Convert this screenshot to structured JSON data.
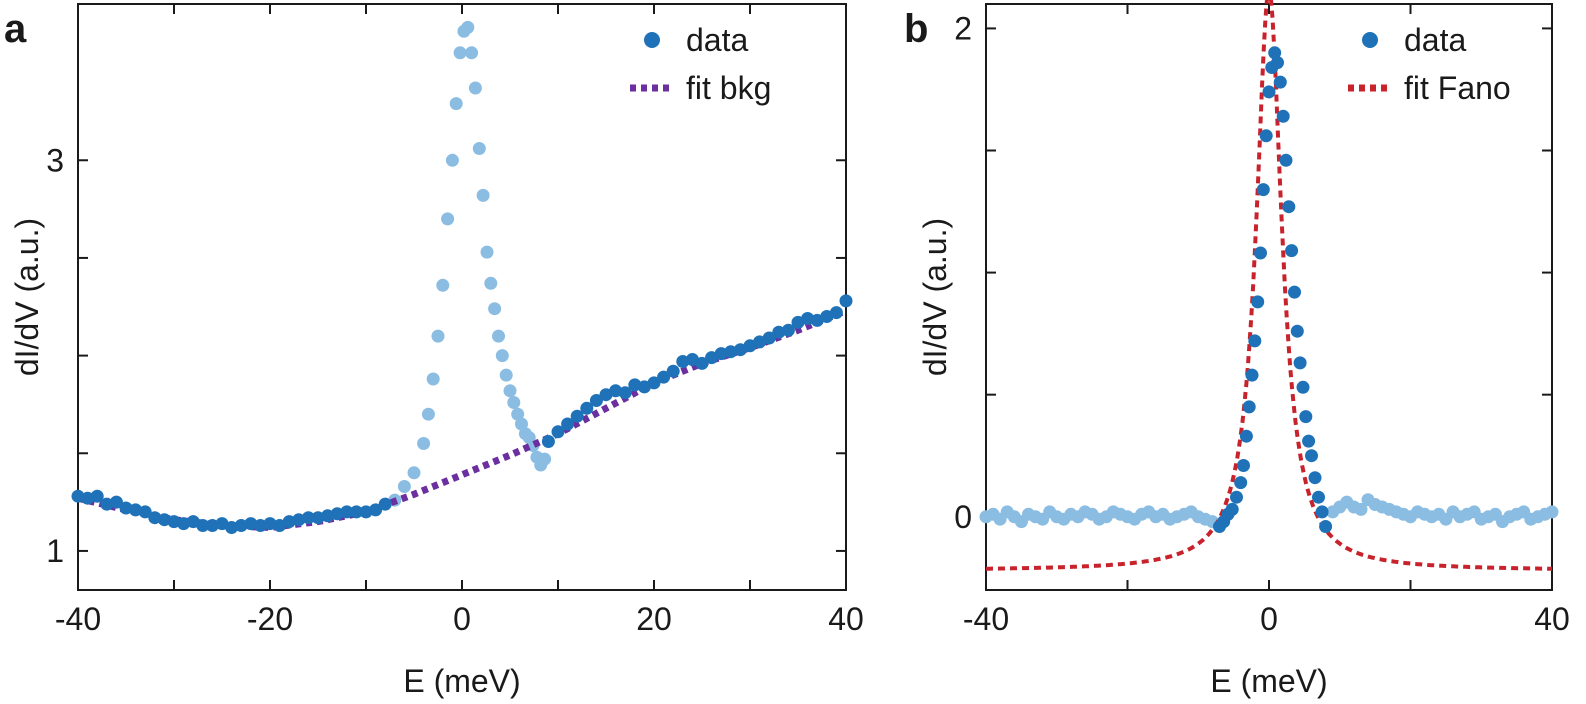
{
  "colors": {
    "data_dark": "#1f72b8",
    "data_light": "#8bbde3",
    "fit_bkg": "#6b2fa0",
    "fit_fano": "#c8232c",
    "axis": "#1a1a1a"
  },
  "chart_data": [
    {
      "panel": "a",
      "type": "scatter",
      "xlabel": "E (meV)",
      "ylabel": "dI/dV (a.u.)",
      "xlim": [
        -40,
        40
      ],
      "ylim": [
        0.8,
        3.8
      ],
      "xticks": [
        -40,
        -20,
        0,
        20,
        40
      ],
      "xtick_labels": [
        "-40",
        "-20",
        "0",
        "20",
        "40"
      ],
      "yticks": [
        1,
        3
      ],
      "ytick_labels": [
        "1",
        "3"
      ],
      "minor_yticks": [
        1.5,
        2,
        2.5
      ],
      "minor_xticks": [
        -30,
        -10,
        10,
        30
      ],
      "grid": false,
      "legend": {
        "position": "top-right",
        "entries": [
          {
            "label": "data",
            "marker": "dot",
            "color_key": "data_dark"
          },
          {
            "label": "fit bkg",
            "marker": "dotted-line",
            "color_key": "fit_bkg"
          }
        ]
      },
      "series": [
        {
          "name": "data (background)",
          "color_key": "data_dark",
          "x": [
            -40,
            -39,
            -38,
            -37,
            -36,
            -35,
            -34,
            -33,
            -32,
            -31,
            -30,
            -29,
            -28,
            -27,
            -26,
            -25,
            -24,
            -23,
            -22,
            -21,
            -20,
            -19,
            -18,
            -17,
            -16,
            -15,
            -14,
            -13,
            -12,
            -11,
            -10,
            -9,
            -8,
            9,
            10,
            11,
            12,
            13,
            14,
            15,
            16,
            17,
            18,
            19,
            20,
            21,
            22,
            23,
            24,
            25,
            26,
            27,
            28,
            29,
            30,
            31,
            32,
            33,
            34,
            35,
            36,
            37,
            38,
            39,
            40
          ],
          "y": [
            1.28,
            1.27,
            1.28,
            1.24,
            1.25,
            1.22,
            1.21,
            1.2,
            1.17,
            1.16,
            1.15,
            1.14,
            1.15,
            1.13,
            1.13,
            1.14,
            1.12,
            1.13,
            1.14,
            1.13,
            1.14,
            1.13,
            1.15,
            1.16,
            1.17,
            1.17,
            1.18,
            1.19,
            1.2,
            1.2,
            1.2,
            1.21,
            1.24,
            1.56,
            1.61,
            1.65,
            1.69,
            1.73,
            1.77,
            1.8,
            1.82,
            1.81,
            1.85,
            1.84,
            1.86,
            1.89,
            1.92,
            1.97,
            1.98,
            1.96,
            1.99,
            2.01,
            2.02,
            2.03,
            2.05,
            2.07,
            2.09,
            2.12,
            2.13,
            2.17,
            2.19,
            2.18,
            2.2,
            2.22,
            2.28
          ]
        },
        {
          "name": "data (peak, excluded)",
          "color_key": "data_light",
          "x": [
            -7,
            -6,
            -5,
            -4,
            -3.5,
            -3,
            -2.5,
            -2,
            -1.5,
            -1,
            -0.6,
            -0.2,
            0.2,
            0.6,
            1,
            1.4,
            1.8,
            2.2,
            2.6,
            3,
            3.4,
            3.8,
            4.2,
            4.6,
            5,
            5.4,
            5.8,
            6.2,
            6.6,
            7,
            7.4,
            7.8,
            8.2,
            8.6
          ],
          "y": [
            1.26,
            1.33,
            1.4,
            1.55,
            1.7,
            1.88,
            2.1,
            2.36,
            2.7,
            3.0,
            3.29,
            3.55,
            3.66,
            3.68,
            3.55,
            3.37,
            3.06,
            2.82,
            2.53,
            2.37,
            2.24,
            2.1,
            2.0,
            1.9,
            1.82,
            1.76,
            1.7,
            1.65,
            1.6,
            1.58,
            1.54,
            1.48,
            1.44,
            1.47
          ]
        },
        {
          "name": "fit bkg",
          "color_key": "fit_bkg",
          "style": "dotted-line",
          "x": [
            -40,
            -35,
            -30,
            -25,
            -20,
            -15,
            -10,
            -5,
            0,
            5,
            10,
            15,
            20,
            25,
            30,
            35,
            40
          ],
          "y": [
            1.27,
            1.21,
            1.16,
            1.13,
            1.12,
            1.15,
            1.2,
            1.29,
            1.39,
            1.49,
            1.6,
            1.73,
            1.86,
            1.96,
            2.04,
            2.13,
            2.23
          ]
        }
      ]
    },
    {
      "panel": "b",
      "type": "scatter",
      "xlabel": "E (meV)",
      "ylabel": "dI/dV (a.u.)",
      "xlim": [
        -40,
        40
      ],
      "ylim": [
        -0.3,
        2.1
      ],
      "xticks": [
        -40,
        0,
        40
      ],
      "xtick_labels": [
        "-40",
        "0",
        "40"
      ],
      "minor_xticks": [
        -20,
        20
      ],
      "yticks": [
        0,
        2
      ],
      "ytick_labels": [
        "0",
        "2"
      ],
      "minor_yticks": [
        0.5,
        1,
        1.5
      ],
      "grid": false,
      "legend": {
        "position": "top-right",
        "entries": [
          {
            "label": "data",
            "marker": "dot",
            "color_key": "data_dark"
          },
          {
            "label": "fit Fano",
            "marker": "dotted-line",
            "color_key": "fit_fano"
          }
        ]
      },
      "series": [
        {
          "name": "data (fitted range)",
          "color_key": "data_dark",
          "x": [
            -7,
            -6.4,
            -5.8,
            -5.2,
            -4.6,
            -4,
            -3.6,
            -3.2,
            -2.8,
            -2.4,
            -2,
            -1.6,
            -1.2,
            -0.8,
            -0.4,
            0,
            0.4,
            0.8,
            1.2,
            1.6,
            2,
            2.4,
            2.8,
            3.2,
            3.6,
            4,
            4.4,
            4.8,
            5.2,
            5.6,
            6,
            6.5,
            7,
            7.5,
            8
          ],
          "y": [
            -0.04,
            -0.02,
            0.01,
            0.03,
            0.08,
            0.14,
            0.21,
            0.33,
            0.45,
            0.58,
            0.72,
            0.88,
            1.08,
            1.34,
            1.56,
            1.74,
            1.84,
            1.9,
            1.86,
            1.78,
            1.64,
            1.46,
            1.27,
            1.09,
            0.92,
            0.76,
            0.63,
            0.53,
            0.41,
            0.31,
            0.25,
            0.16,
            0.08,
            0.02,
            -0.04
          ]
        },
        {
          "name": "data (outside fit)",
          "color_key": "data_light",
          "x": [
            -40,
            -39,
            -38,
            -37,
            -36,
            -35,
            -34,
            -33,
            -32,
            -31,
            -30,
            -29,
            -28,
            -27,
            -26,
            -25,
            -24,
            -23,
            -22,
            -21,
            -20,
            -19,
            -18,
            -17,
            -16,
            -15,
            -14,
            -13,
            -12,
            -11,
            -10,
            -9,
            -8,
            9,
            10,
            11,
            12,
            13,
            14,
            15,
            16,
            17,
            18,
            19,
            20,
            21,
            22,
            23,
            24,
            25,
            26,
            27,
            28,
            29,
            30,
            31,
            32,
            33,
            34,
            35,
            36,
            37,
            38,
            39,
            40
          ],
          "y": [
            0.0,
            0.01,
            -0.01,
            0.02,
            0.0,
            -0.02,
            0.01,
            0.0,
            -0.01,
            0.02,
            0.0,
            -0.01,
            0.01,
            0.0,
            0.02,
            0.01,
            -0.01,
            0.0,
            0.02,
            0.01,
            0.0,
            -0.01,
            0.01,
            0.02,
            0.0,
            0.01,
            -0.01,
            0.0,
            0.01,
            0.02,
            0.0,
            -0.01,
            -0.02,
            0.02,
            0.04,
            0.06,
            0.04,
            0.03,
            0.07,
            0.05,
            0.04,
            0.03,
            0.02,
            0.01,
            0.0,
            0.02,
            0.01,
            0.0,
            0.01,
            -0.01,
            0.02,
            0.0,
            0.01,
            0.02,
            -0.01,
            0.0,
            0.01,
            -0.02,
            0.0,
            0.01,
            0.02,
            -0.01,
            0.0,
            0.01,
            0.02
          ]
        },
        {
          "name": "fit Fano",
          "color_key": "fit_fano",
          "style": "dotted-line",
          "model": "fano",
          "params": {
            "amplitude": 2.38,
            "center": 0.0,
            "half_width": 2.2,
            "offset": -0.22
          }
        }
      ]
    }
  ],
  "panel_letters": [
    "a",
    "b"
  ]
}
